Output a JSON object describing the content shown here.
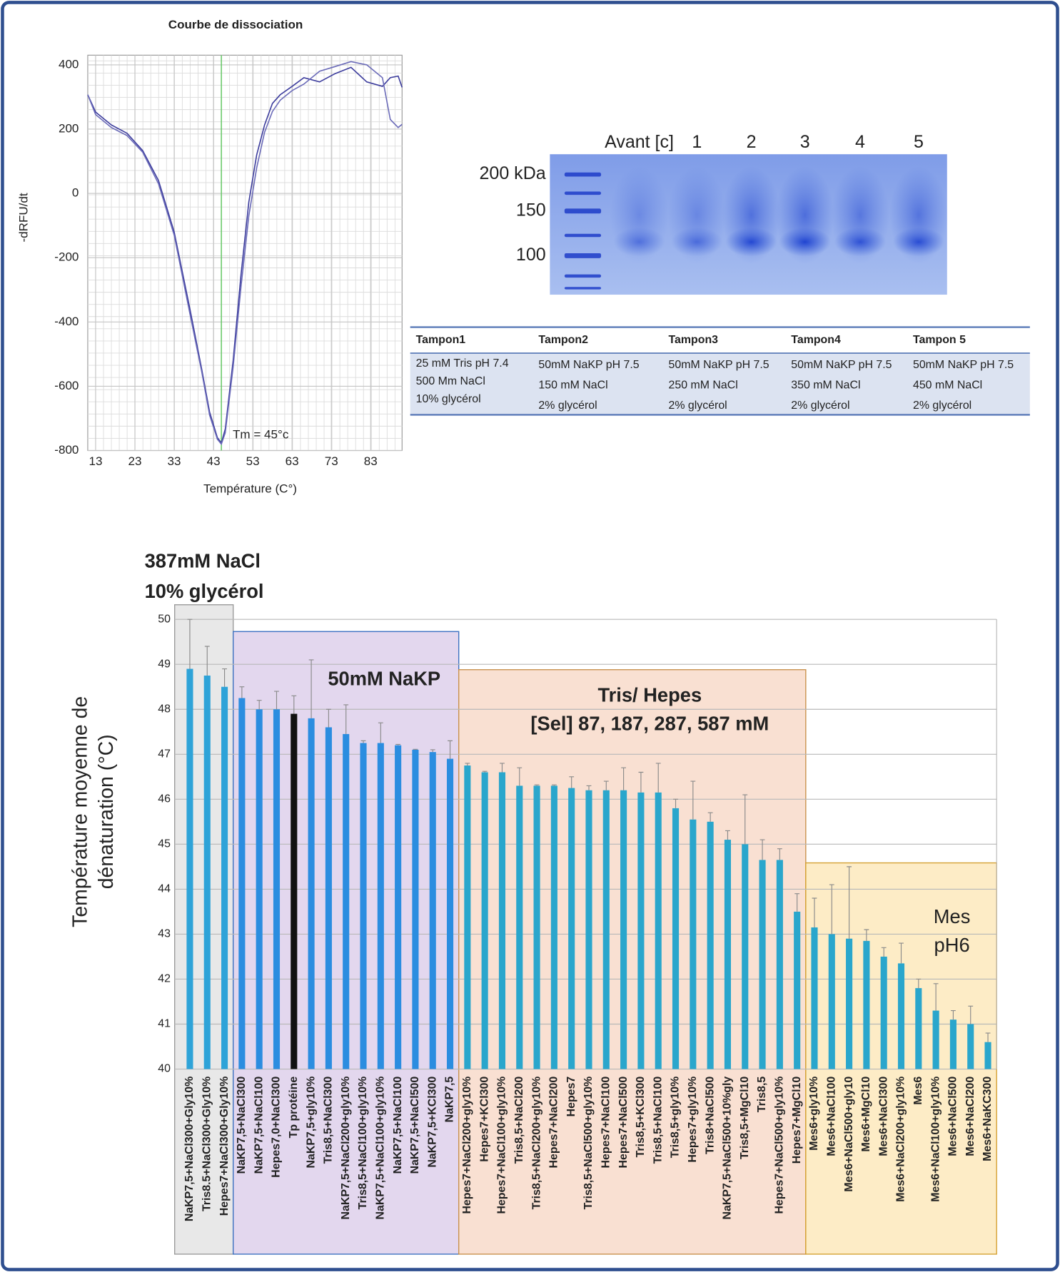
{
  "chart_data": [
    {
      "type": "line",
      "title": "Courbe de dissociation",
      "x_label": "Température (C°)",
      "y_label": "-dRFU/dt",
      "x": [
        11,
        13,
        17,
        21,
        25,
        29,
        33,
        37,
        40,
        42,
        44,
        45,
        46,
        48,
        50,
        52,
        54,
        56,
        58,
        60,
        63,
        66,
        70,
        74,
        78,
        82,
        86,
        88,
        90,
        91
      ],
      "series": [
        {
          "color": "#3b3b9c",
          "values": [
            307,
            253,
            213,
            187,
            133,
            40,
            -120,
            -360,
            -547,
            -680,
            -760,
            -776,
            -733,
            -520,
            -253,
            -27,
            120,
            213,
            280,
            307,
            333,
            360,
            347,
            373,
            392,
            347,
            333,
            360,
            365,
            330
          ]
        },
        {
          "color": "#6a6ab8",
          "values": [
            307,
            245,
            205,
            180,
            128,
            30,
            -130,
            -375,
            -555,
            -690,
            -765,
            -780,
            -745,
            -540,
            -290,
            -70,
            80,
            190,
            255,
            290,
            320,
            340,
            380,
            395,
            410,
            400,
            360,
            230,
            205,
            215
          ]
        }
      ],
      "xlim": [
        11,
        91
      ],
      "ylim": [
        -800,
        430
      ],
      "xticks": [
        13,
        23,
        33,
        43,
        53,
        63,
        73,
        83
      ],
      "yticks": [
        -800,
        -600,
        -400,
        -200,
        0,
        200,
        400
      ],
      "grid": true,
      "annotation": {
        "text": "Tm = 45°c",
        "x": 45,
        "color": "#5ac85a"
      }
    },
    {
      "type": "bar",
      "y_label": [
        "Température moyenne de",
        "dénaturation (°C)"
      ],
      "categories": [
        "NaKP7,5+NaCl300+Gly10%",
        "Tris8.5+NaCl300+Gly10%",
        "Hepes7+NaCl300+Gly10%",
        "NaKP7,5+NaCl300",
        "NaKP7,5+NaCl100",
        "Hepes7,0+NaCl300",
        "Tp protéine",
        "NaKP7,5+gly10%",
        "Tris8,5+NaCl300",
        "NaKP7,5+NaCl200+gly10%",
        "Tris8,5+NaCl100+gly10%",
        "NaKP7,5+NaCl100+gly10%",
        "NaKP7,5+NaCl100",
        "NaKP7,5+NaCl500",
        "NaKP7,5+KCl300",
        "NaKP7,5",
        "Hepes7+NaCl200+gly10%",
        "Hepes7+KCl300",
        "Hepes7+NaCl100+gly10%",
        "Tris8,5+NaCl200",
        "Tris8,5+NaCl200+gly10%",
        "Hepes7+NaCl200",
        "Hepes7",
        "Tris8,5+NaCl500+gly10%",
        "Hepes7+NaCl100",
        "Hepes7+NaCl500",
        "Tris8,5+KCl300",
        "Tris8,5+NaCl100",
        "Tris8,5+gly10%",
        "Hepes7+gly10%",
        "Tris8+NaCl500",
        "NaKP7,5+NaCl500+10%gly",
        "Tris8,5+MgCl10",
        "Tris8,5",
        "Hepes7+NaCl500+gly10%",
        "Hepes7+MgCl10",
        "Mes6+gly10%",
        "Mes6+NaCl100",
        "Mes6+NaCl500+gly10",
        "Mes6+MgCl10",
        "Mes6+NaCl300",
        "Mes6+NaCl200+gly10%",
        "Mes6",
        "Mes6+NaCl100+gly10%",
        "Mes6+NaCl500",
        "Mes6+NaCl200",
        "Mes6+NaKC300"
      ],
      "values": [
        48.9,
        48.75,
        48.5,
        48.25,
        48,
        48,
        47.9,
        47.8,
        47.6,
        47.45,
        47.25,
        47.25,
        47.2,
        47.1,
        47.05,
        46.9,
        46.75,
        46.6,
        46.6,
        46.3,
        46.3,
        46.3,
        46.25,
        46.2,
        46.2,
        46.2,
        46.15,
        46.15,
        45.8,
        45.55,
        45.5,
        45.1,
        45,
        44.65,
        44.65,
        43.5,
        43.15,
        43,
        42.9,
        42.85,
        42.5,
        42.35,
        41.8,
        41.3,
        41.1,
        41,
        40.6
      ],
      "errors": [
        1.1,
        0.65,
        0.4,
        0.25,
        0.2,
        0.4,
        0.4,
        1.3,
        0.4,
        0.65,
        0.05,
        0.45,
        0.02,
        0.01,
        0.05,
        0.4,
        0.05,
        0.02,
        0.2,
        0.4,
        0.02,
        0.02,
        0.25,
        0.1,
        0.2,
        0.5,
        0.45,
        0.65,
        0.2,
        0.85,
        0.2,
        0.2,
        1.1,
        0.45,
        0.25,
        0.4,
        0.65,
        1.1,
        1.6,
        0.25,
        0.2,
        0.45,
        0.2,
        0.6,
        0.2,
        0.4,
        0.2
      ],
      "colors": [
        "#2ea3d8",
        "#2ea3d8",
        "#2ea3d8",
        "#2b8de0",
        "#2b8de0",
        "#2b8de0",
        "#111111",
        "#2b8de0",
        "#2b8de0",
        "#2b8de0",
        "#2b8de0",
        "#2b8de0",
        "#2b8de0",
        "#2b8de0",
        "#2b8de0",
        "#2b8de0",
        "#2aa6cc",
        "#2aa6cc",
        "#2aa6cc",
        "#2aa6cc",
        "#2aa6cc",
        "#2aa6cc",
        "#2aa6cc",
        "#2aa6cc",
        "#2aa6cc",
        "#2aa6cc",
        "#2aa6cc",
        "#2aa6cc",
        "#2aa6cc",
        "#2aa6cc",
        "#2aa6cc",
        "#2aa6cc",
        "#2aa6cc",
        "#2aa6cc",
        "#2aa6cc",
        "#2aa6cc",
        "#2aa6cc",
        "#2aa6cc",
        "#2aa6cc",
        "#2aa6cc",
        "#2aa6cc",
        "#2aa6cc",
        "#2aa6cc",
        "#2aa6cc",
        "#2aa6cc",
        "#2aa6cc",
        "#2aa6cc"
      ],
      "label_colors": [
        "#222222",
        "#222222",
        "#222222",
        "#222222",
        "#222222",
        "#222222",
        "#1e8fd6",
        "#222222",
        "#222222",
        "#222222",
        "#222222",
        "#222222",
        "#222222",
        "#222222",
        "#222222",
        "#222222",
        "#222222",
        "#222222",
        "#222222",
        "#222222",
        "#222222",
        "#222222",
        "#222222",
        "#222222",
        "#222222",
        "#222222",
        "#222222",
        "#222222",
        "#222222",
        "#222222",
        "#222222",
        "#222222",
        "#222222",
        "#222222",
        "#222222",
        "#222222",
        "#222222",
        "#222222",
        "#222222",
        "#222222",
        "#222222",
        "#222222",
        "#222222",
        "#222222",
        "#222222",
        "#222222",
        "#222222"
      ],
      "ylim": [
        40,
        50
      ],
      "yticks": [
        40,
        41,
        42,
        43,
        44,
        45,
        46,
        47,
        48,
        49,
        50
      ],
      "grid": true,
      "groups": [
        {
          "label": [
            "387mM NaCl",
            "10% glycérol"
          ],
          "fill": "#e8e8e8",
          "stroke": "#9a9a9a"
        },
        {
          "label": [
            "50mM NaKP"
          ],
          "fill": "#e3d7ee",
          "stroke": "#3a6fc0"
        },
        {
          "label": [
            "Tris/ Hepes",
            "[Sel] 87, 187, 287, 587 mM"
          ],
          "fill": "#f9e0d2",
          "stroke": "#c8904c"
        },
        {
          "label": [
            "Mes",
            "pH6"
          ],
          "fill": "#fdecc6",
          "stroke": "#d4a030"
        }
      ]
    }
  ],
  "gel": {
    "lanes": [
      "Avant [c]",
      "1",
      "2",
      "3",
      "4",
      "5"
    ],
    "markers": [
      "200 kDa",
      "150",
      "100"
    ]
  },
  "table": {
    "columns": [
      {
        "header": "Tampon1",
        "lines": [
          "25 mM Tris pH 7.4",
          "500 Mm NaCl",
          "10% glycérol"
        ]
      },
      {
        "header": "Tampon2",
        "lines": [
          "50mM NaKP pH 7.5",
          "150 mM NaCl",
          "2% glycérol"
        ]
      },
      {
        "header": "Tampon3",
        "lines": [
          "50mM NaKP pH 7.5",
          "250 mM NaCl",
          "2% glycérol"
        ]
      },
      {
        "header": "Tampon4",
        "lines": [
          "50mM NaKP pH 7.5",
          "350 mM NaCl",
          "2% glycérol"
        ]
      },
      {
        "header": "Tampon 5",
        "lines": [
          "50mM NaKP pH 7.5",
          "450 mM NaCl",
          "2% glycérol"
        ]
      }
    ]
  }
}
